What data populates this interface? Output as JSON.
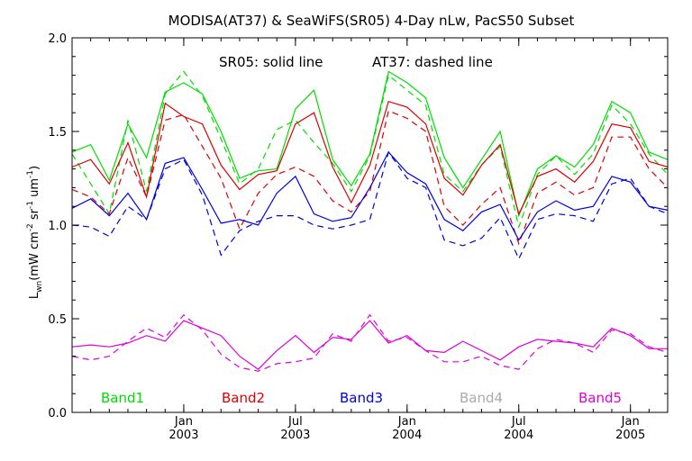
{
  "chart_data": {
    "type": "line",
    "title": "MODISA(AT37) & SeaWiFS(SR05) 4-Day nLw, PacS50 Subset",
    "subtitle_solid": "SR05: solid line",
    "subtitle_dashed": "AT37: dashed line",
    "ylabel": {
      "base": "L",
      "base_sub": "wn",
      "units_open": "(mW cm",
      "units_exp1": "-2",
      "units_mid": " sr",
      "units_exp2": "-1",
      "units_end": " um",
      "units_exp3": "-1",
      "units_close": ")"
    },
    "ylim": [
      0.0,
      2.0
    ],
    "yticks": [
      "0.0",
      "0.5",
      "1.0",
      "1.5",
      "2.0"
    ],
    "xlim": [
      0,
      32
    ],
    "xticks": [
      {
        "x": 6,
        "month": "Jan",
        "year": "2003"
      },
      {
        "x": 12,
        "month": "Jul",
        "year": "2003"
      },
      {
        "x": 18,
        "month": "Jan",
        "year": "2004"
      },
      {
        "x": 24,
        "month": "Jul",
        "year": "2004"
      },
      {
        "x": 30,
        "month": "Jan",
        "year": "2005"
      }
    ],
    "legend": [
      {
        "label": "Band1",
        "color": "#00dd00"
      },
      {
        "label": "Band2",
        "color": "#dd0000"
      },
      {
        "label": "Band3",
        "color": "#0000dd"
      },
      {
        "label": "Band4",
        "color": "#aaaaaa"
      },
      {
        "label": "Band5",
        "color": "#dd00dd"
      }
    ],
    "series": [
      {
        "band": "Band1",
        "line": "solid",
        "color": "#00dd00",
        "x": [
          0,
          1,
          2,
          3,
          4,
          5,
          6,
          7,
          8,
          9,
          10,
          11,
          12,
          13,
          14,
          15,
          16,
          17,
          18,
          19,
          20,
          21,
          22,
          23,
          24,
          25,
          26,
          27,
          28,
          29,
          30,
          31,
          32
        ],
        "y": [
          1.39,
          1.43,
          1.24,
          1.54,
          1.36,
          1.71,
          1.76,
          1.7,
          1.5,
          1.25,
          1.29,
          1.3,
          1.62,
          1.72,
          1.35,
          1.21,
          1.38,
          1.82,
          1.76,
          1.68,
          1.36,
          1.2,
          1.35,
          1.5,
          1.05,
          1.3,
          1.37,
          1.31,
          1.43,
          1.66,
          1.6,
          1.39,
          1.35
        ]
      },
      {
        "band": "Band1",
        "line": "dashed",
        "color": "#00dd00",
        "x": [
          0,
          1,
          2,
          3,
          4,
          5,
          6,
          7,
          8,
          9,
          10,
          11,
          12,
          13,
          14,
          15,
          16,
          17,
          18,
          19,
          20,
          21,
          22,
          23,
          24,
          25,
          26,
          27,
          28,
          29,
          30,
          31,
          32
        ],
        "y": [
          1.38,
          1.22,
          1.06,
          1.56,
          1.18,
          1.7,
          1.82,
          1.69,
          1.46,
          1.22,
          1.3,
          1.51,
          1.56,
          1.44,
          1.33,
          1.18,
          1.37,
          1.8,
          1.72,
          1.64,
          1.27,
          1.18,
          1.32,
          1.42,
          0.99,
          1.27,
          1.37,
          1.27,
          1.38,
          1.64,
          1.54,
          1.38,
          1.27
        ]
      },
      {
        "band": "Band2",
        "line": "solid",
        "color": "#dd0000",
        "x": [
          0,
          1,
          2,
          3,
          4,
          5,
          6,
          7,
          8,
          9,
          10,
          11,
          12,
          13,
          14,
          15,
          16,
          17,
          18,
          19,
          20,
          21,
          22,
          23,
          24,
          25,
          26,
          27,
          28,
          29,
          30,
          31,
          32
        ],
        "y": [
          1.31,
          1.35,
          1.22,
          1.44,
          1.15,
          1.65,
          1.58,
          1.54,
          1.32,
          1.19,
          1.27,
          1.29,
          1.54,
          1.6,
          1.31,
          1.12,
          1.32,
          1.66,
          1.63,
          1.54,
          1.25,
          1.16,
          1.32,
          1.43,
          1.06,
          1.26,
          1.3,
          1.23,
          1.34,
          1.54,
          1.52,
          1.34,
          1.31
        ]
      },
      {
        "band": "Band2",
        "line": "dashed",
        "color": "#dd0000",
        "x": [
          0,
          1,
          2,
          3,
          4,
          5,
          6,
          7,
          8,
          9,
          10,
          11,
          12,
          13,
          14,
          15,
          16,
          17,
          18,
          19,
          20,
          21,
          22,
          23,
          24,
          25,
          26,
          27,
          28,
          29,
          30,
          31,
          32
        ],
        "y": [
          1.19,
          1.15,
          1.06,
          1.36,
          1.15,
          1.56,
          1.59,
          1.42,
          1.25,
          0.98,
          1.17,
          1.27,
          1.31,
          1.26,
          1.13,
          1.07,
          1.18,
          1.61,
          1.57,
          1.5,
          1.1,
          1.0,
          1.11,
          1.2,
          0.9,
          1.17,
          1.23,
          1.16,
          1.2,
          1.47,
          1.47,
          1.3,
          1.2
        ]
      },
      {
        "band": "Band3",
        "line": "solid",
        "color": "#0000dd",
        "x": [
          0,
          1,
          2,
          3,
          4,
          5,
          6,
          7,
          8,
          9,
          10,
          11,
          12,
          13,
          14,
          15,
          16,
          17,
          18,
          19,
          20,
          21,
          22,
          23,
          24,
          25,
          26,
          27,
          28,
          29,
          30,
          31,
          32
        ],
        "y": [
          1.09,
          1.14,
          1.05,
          1.17,
          1.03,
          1.33,
          1.36,
          1.19,
          1.01,
          1.03,
          1.0,
          1.17,
          1.26,
          1.06,
          1.02,
          1.04,
          1.2,
          1.39,
          1.28,
          1.22,
          1.03,
          0.97,
          1.07,
          1.11,
          0.92,
          1.07,
          1.13,
          1.08,
          1.1,
          1.26,
          1.23,
          1.1,
          1.08
        ]
      },
      {
        "band": "Band3",
        "line": "dashed",
        "color": "#0000dd",
        "x": [
          0,
          1,
          2,
          3,
          4,
          5,
          6,
          7,
          8,
          9,
          10,
          11,
          12,
          13,
          14,
          15,
          16,
          17,
          18,
          19,
          20,
          21,
          22,
          23,
          24,
          25,
          26,
          27,
          28,
          29,
          30,
          31,
          32
        ],
        "y": [
          1.0,
          0.99,
          0.94,
          1.1,
          1.03,
          1.3,
          1.35,
          1.16,
          0.84,
          0.97,
          1.02,
          1.05,
          1.05,
          1.0,
          0.98,
          1.0,
          1.03,
          1.39,
          1.25,
          1.2,
          0.92,
          0.89,
          0.93,
          1.04,
          0.82,
          1.03,
          1.06,
          1.05,
          1.02,
          1.22,
          1.25,
          1.1,
          1.06
        ]
      },
      {
        "band": "Band5",
        "line": "solid",
        "color": "#dd00dd",
        "x": [
          0,
          1,
          2,
          3,
          4,
          5,
          6,
          7,
          8,
          9,
          10,
          11,
          12,
          13,
          14,
          15,
          16,
          17,
          18,
          19,
          20,
          21,
          22,
          23,
          24,
          25,
          26,
          27,
          28,
          29,
          30,
          31,
          32
        ],
        "y": [
          0.35,
          0.36,
          0.35,
          0.37,
          0.41,
          0.38,
          0.49,
          0.45,
          0.41,
          0.3,
          0.23,
          0.33,
          0.41,
          0.32,
          0.4,
          0.39,
          0.49,
          0.37,
          0.41,
          0.33,
          0.32,
          0.38,
          0.33,
          0.28,
          0.35,
          0.39,
          0.38,
          0.37,
          0.35,
          0.45,
          0.41,
          0.34,
          0.34
        ]
      },
      {
        "band": "Band5",
        "line": "dashed",
        "color": "#dd00dd",
        "x": [
          0,
          1,
          2,
          3,
          4,
          5,
          6,
          7,
          8,
          9,
          10,
          11,
          12,
          13,
          14,
          15,
          16,
          17,
          18,
          19,
          20,
          21,
          22,
          23,
          24,
          25,
          26,
          27,
          28,
          29,
          30,
          31,
          32
        ],
        "y": [
          0.3,
          0.28,
          0.3,
          0.38,
          0.45,
          0.4,
          0.52,
          0.44,
          0.31,
          0.24,
          0.22,
          0.26,
          0.27,
          0.29,
          0.42,
          0.38,
          0.52,
          0.38,
          0.4,
          0.33,
          0.27,
          0.27,
          0.3,
          0.25,
          0.23,
          0.34,
          0.39,
          0.37,
          0.32,
          0.44,
          0.42,
          0.35,
          0.32
        ]
      }
    ]
  }
}
